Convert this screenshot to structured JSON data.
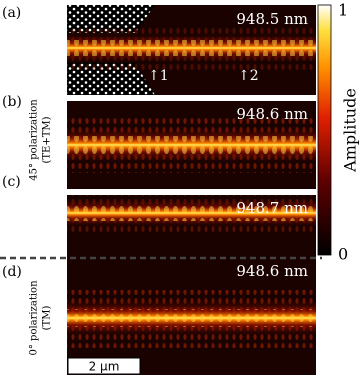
{
  "panels": [
    {
      "label": "(a)",
      "wavelength": "948.5 nm",
      "markers": [
        "↑1",
        "↑2"
      ]
    },
    {
      "label": "(b)",
      "wavelength": "948.6 nm"
    },
    {
      "label": "(c)",
      "wavelength": "948.7 nm"
    },
    {
      "label": "(d)",
      "wavelength": "948.6 nm",
      "scale_bar": "2 μm"
    }
  ],
  "side_labels": [
    {
      "lines": [
        "45° polarization",
        "(TE+TM)"
      ]
    },
    {
      "lines": [
        "0° polarization",
        "(TM)"
      ]
    }
  ],
  "colorbar": {
    "label": "Amplitude",
    "ticks": [
      0,
      1
    ]
  }
}
